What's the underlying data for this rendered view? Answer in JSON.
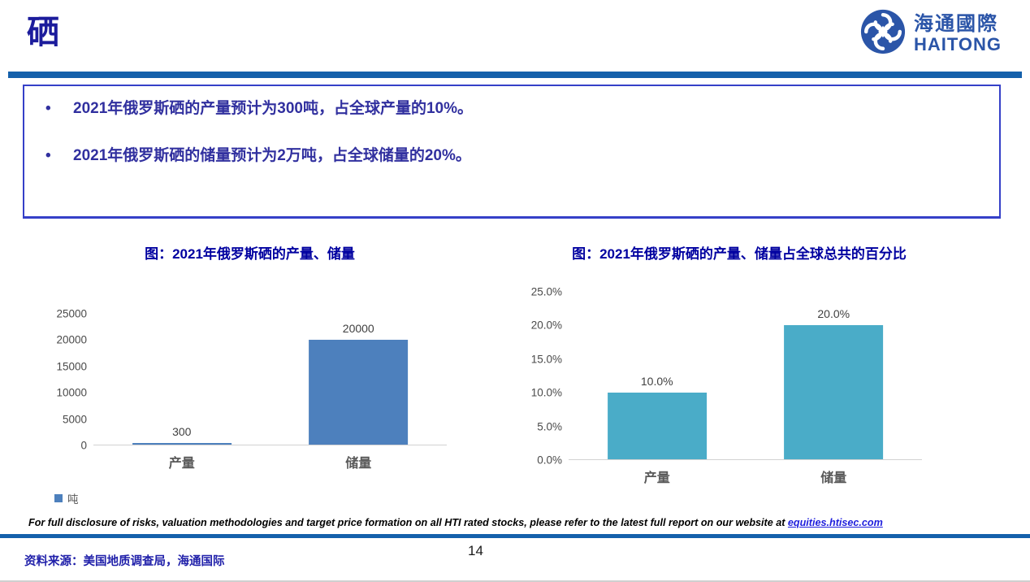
{
  "slide": {
    "title": "硒",
    "page_number": "14",
    "source_line": "资料来源：美国地质调查局，海通国际",
    "bullet_marker": "•"
  },
  "logo": {
    "cn": "海通國際",
    "en": "HAITONG",
    "color": "#2b55a8"
  },
  "bullets": [
    "2021年俄罗斯硒的产量预计为300吨，占全球产量的10%。",
    "2021年俄罗斯硒的储量预计为2万吨，占全球储量的20%。"
  ],
  "disclaimer": {
    "text": "For full disclosure of risks, valuation methodologies and target price formation on all HTI rated stocks, please refer to the latest full report on our website at ",
    "link": "equities.htisec.com"
  },
  "colors": {
    "title_navy": "#1c1c9c",
    "rule_blue": "#1460ab",
    "box_border_blue": "#3540c8",
    "bullet_text_blue": "#31309f",
    "chart_title_navy": "#0000a0",
    "left_bar_blue": "#4d80bd",
    "right_bar_teal": "#4aacc8",
    "link_blue": "#2020dd"
  },
  "chart_data": [
    {
      "type": "bar",
      "title": "图：2021年俄罗斯硒的产量、储量",
      "categories": [
        "产量",
        "储量"
      ],
      "values": [
        300,
        20000
      ],
      "value_labels": [
        "300",
        "20000"
      ],
      "unit": "吨",
      "ylim": [
        0,
        25000
      ],
      "yticks": [
        0,
        5000,
        10000,
        15000,
        20000,
        25000
      ],
      "ytick_labels": [
        "0",
        "5000",
        "10000",
        "15000",
        "20000",
        "25000"
      ],
      "bar_color": "#4d80bd",
      "grid": false,
      "legend": {
        "label": "吨",
        "color": "#4d80bd",
        "position": "bottom-left"
      }
    },
    {
      "type": "bar",
      "title": "图：2021年俄罗斯硒的产量、储量占全球总共的百分比",
      "categories": [
        "产量",
        "储量"
      ],
      "values": [
        10.0,
        20.0
      ],
      "value_labels": [
        "10.0%",
        "20.0%"
      ],
      "unit": "%",
      "ylim": [
        0,
        25
      ],
      "yticks": [
        0,
        5,
        10,
        15,
        20,
        25
      ],
      "ytick_labels": [
        "0.0%",
        "5.0%",
        "10.0%",
        "15.0%",
        "20.0%",
        "25.0%"
      ],
      "bar_color": "#4aacc8",
      "grid": false
    }
  ]
}
